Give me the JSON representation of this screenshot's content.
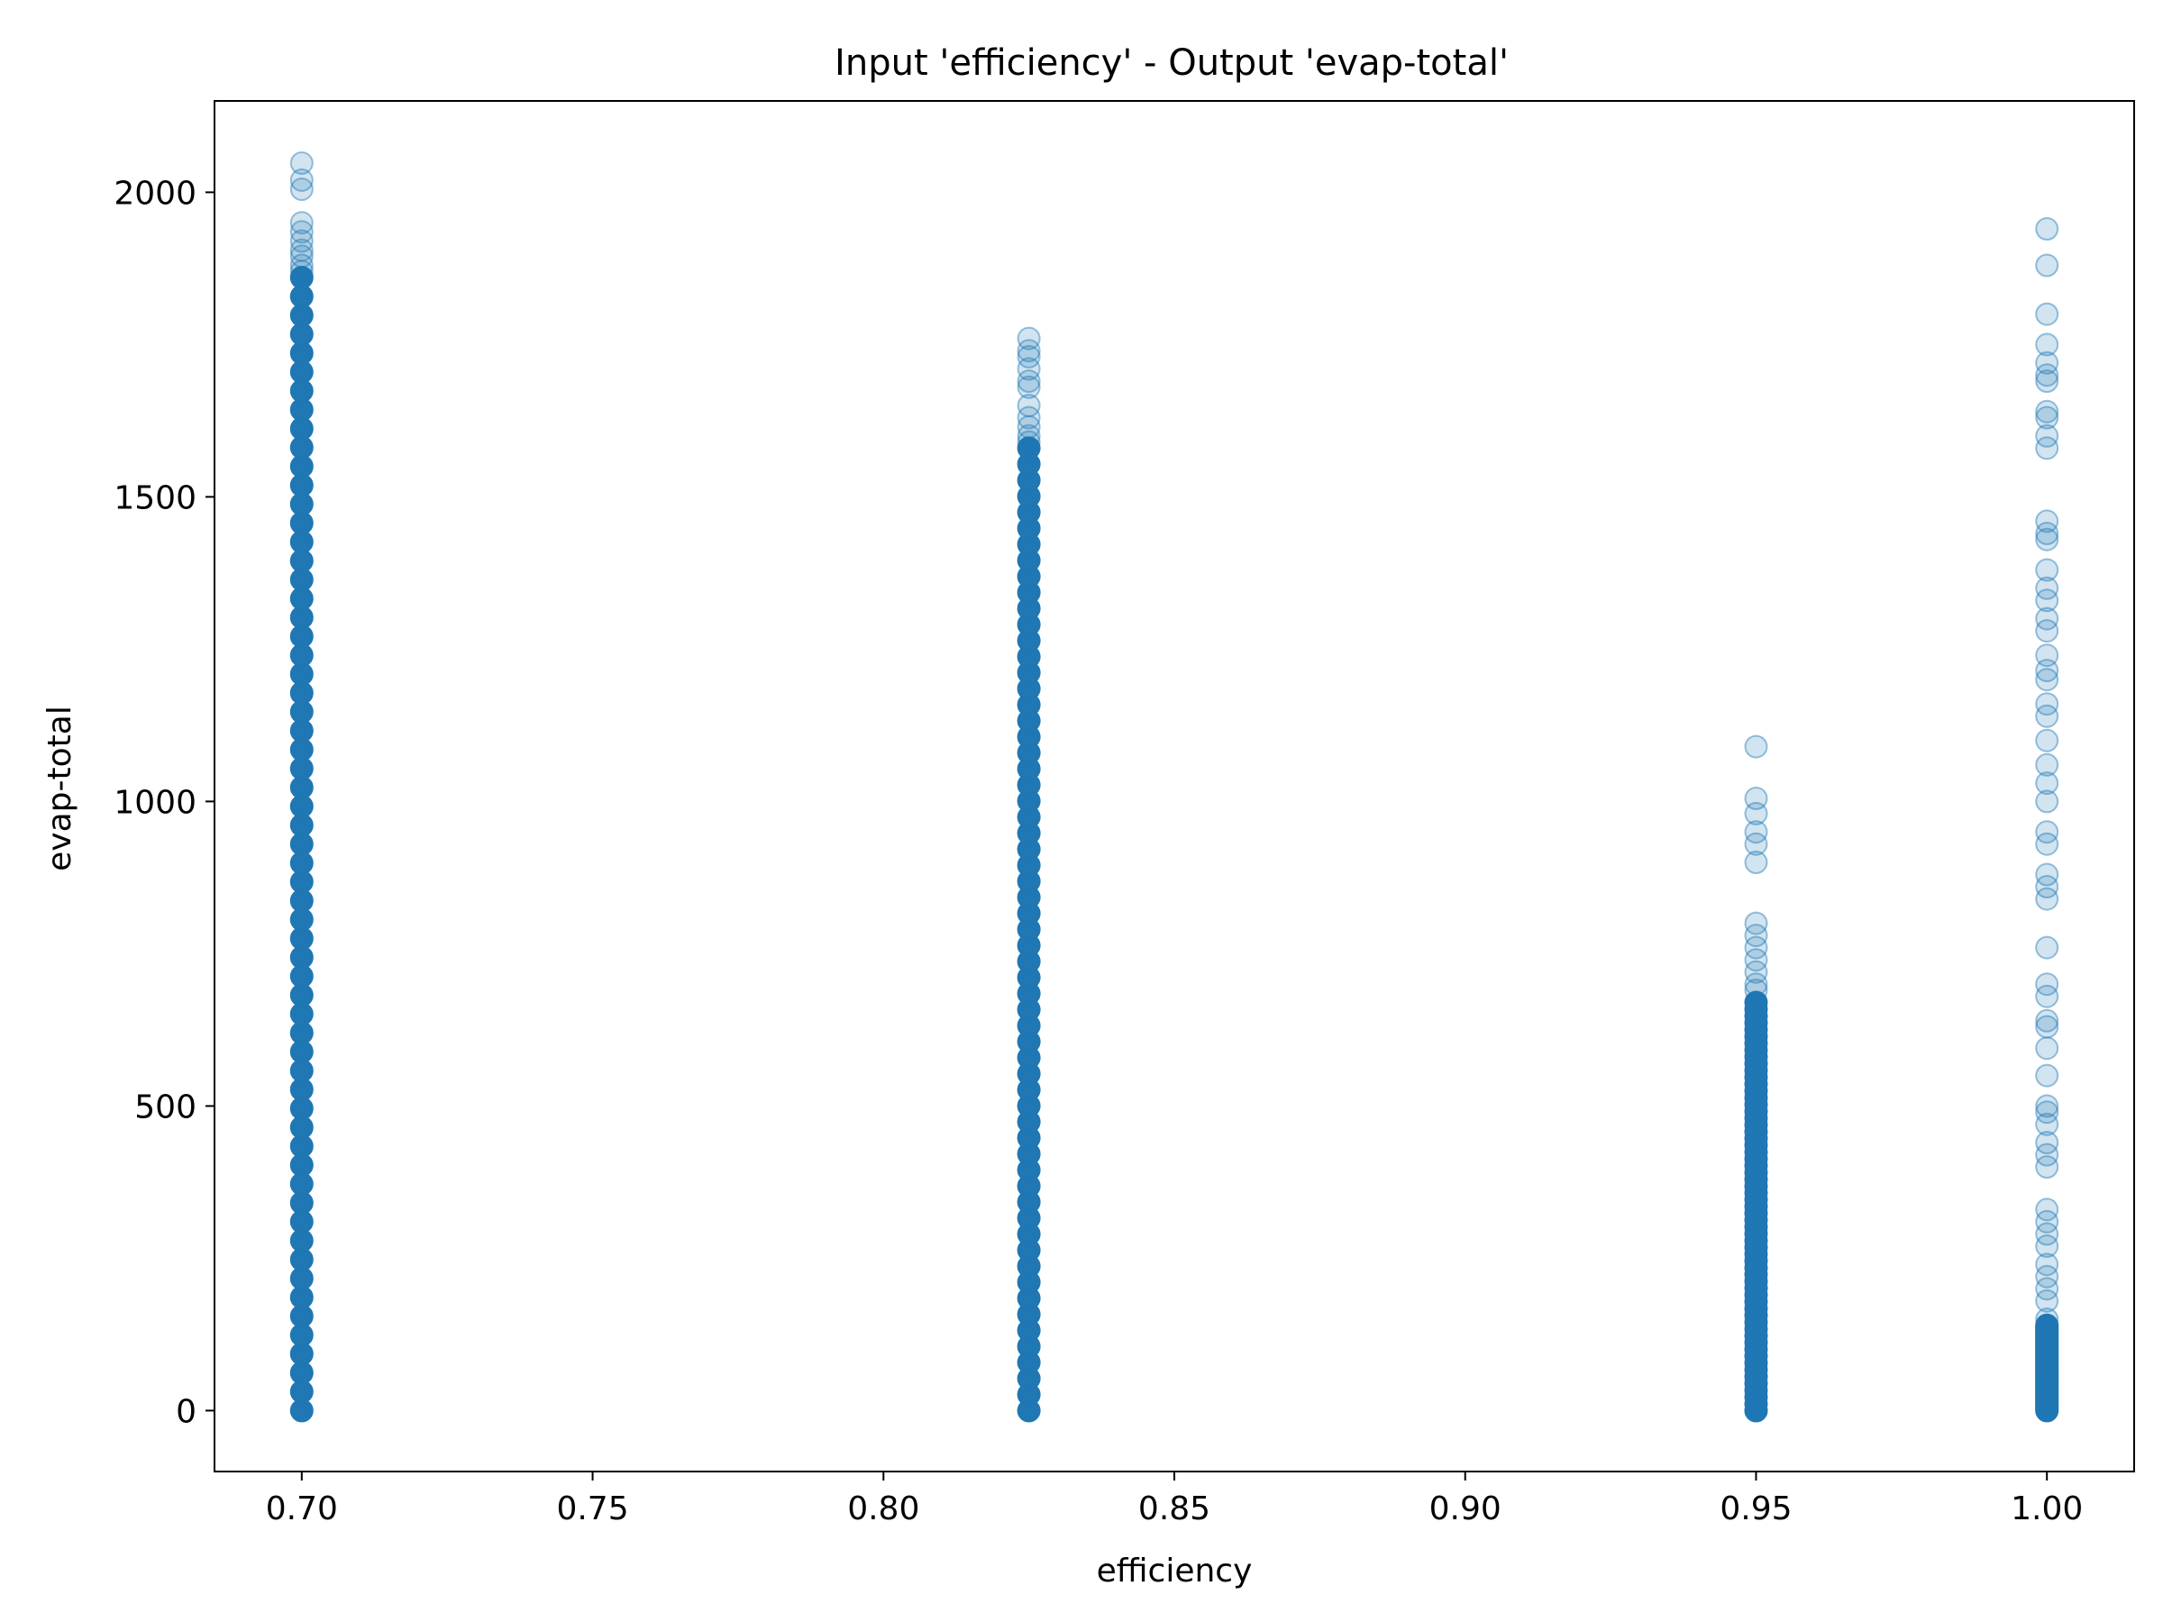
{
  "chart_data": {
    "type": "scatter",
    "title": "Input 'efficiency' - Output 'evap-total'",
    "xlabel": "efficiency",
    "ylabel": "evap-total",
    "xlim": [
      0.685,
      1.015
    ],
    "ylim": [
      -100,
      2150
    ],
    "xticks": [
      0.7,
      0.75,
      0.8,
      0.85,
      0.9,
      0.95,
      1.0
    ],
    "xtick_labels": [
      "0.70",
      "0.75",
      "0.80",
      "0.85",
      "0.90",
      "0.95",
      "1.00"
    ],
    "yticks": [
      0,
      500,
      1000,
      1500,
      2000
    ],
    "ytick_labels": [
      "0",
      "500",
      "1000",
      "1500",
      "2000"
    ],
    "grid": false,
    "legend": "none",
    "marker_color": "#1f77b4",
    "marker_alpha": 0.2,
    "series": [
      {
        "x": 0.7,
        "dense_range": [
          0,
          1860
        ],
        "outliers": [
          1870,
          1880,
          1895,
          1905,
          1920,
          1935,
          1950,
          2005,
          2020,
          2048
        ]
      },
      {
        "x": 0.825,
        "dense_range": [
          0,
          1580
        ],
        "outliers": [
          1590,
          1600,
          1615,
          1630,
          1650,
          1680,
          1690,
          1710,
          1730,
          1740,
          1760
        ]
      },
      {
        "x": 0.95,
        "dense_range": [
          0,
          670
        ],
        "outliers": [
          0,
          690,
          700,
          720,
          740,
          760,
          780,
          800,
          900,
          930,
          950,
          980,
          1005,
          1090
        ]
      },
      {
        "x": 1.0,
        "dense_range": [
          0,
          140
        ],
        "outliers": [
          150,
          180,
          200,
          220,
          240,
          270,
          290,
          310,
          330,
          400,
          420,
          440,
          470,
          490,
          500,
          550,
          595,
          630,
          640,
          680,
          700,
          760,
          840,
          860,
          880,
          930,
          950,
          1000,
          1030,
          1060,
          1100,
          1140,
          1160,
          1200,
          1215,
          1240,
          1280,
          1300,
          1330,
          1350,
          1380,
          1430,
          1440,
          1460,
          1580,
          1600,
          1630,
          1640,
          1690,
          1700,
          1720,
          1750,
          1800,
          1880,
          1940
        ]
      }
    ]
  }
}
